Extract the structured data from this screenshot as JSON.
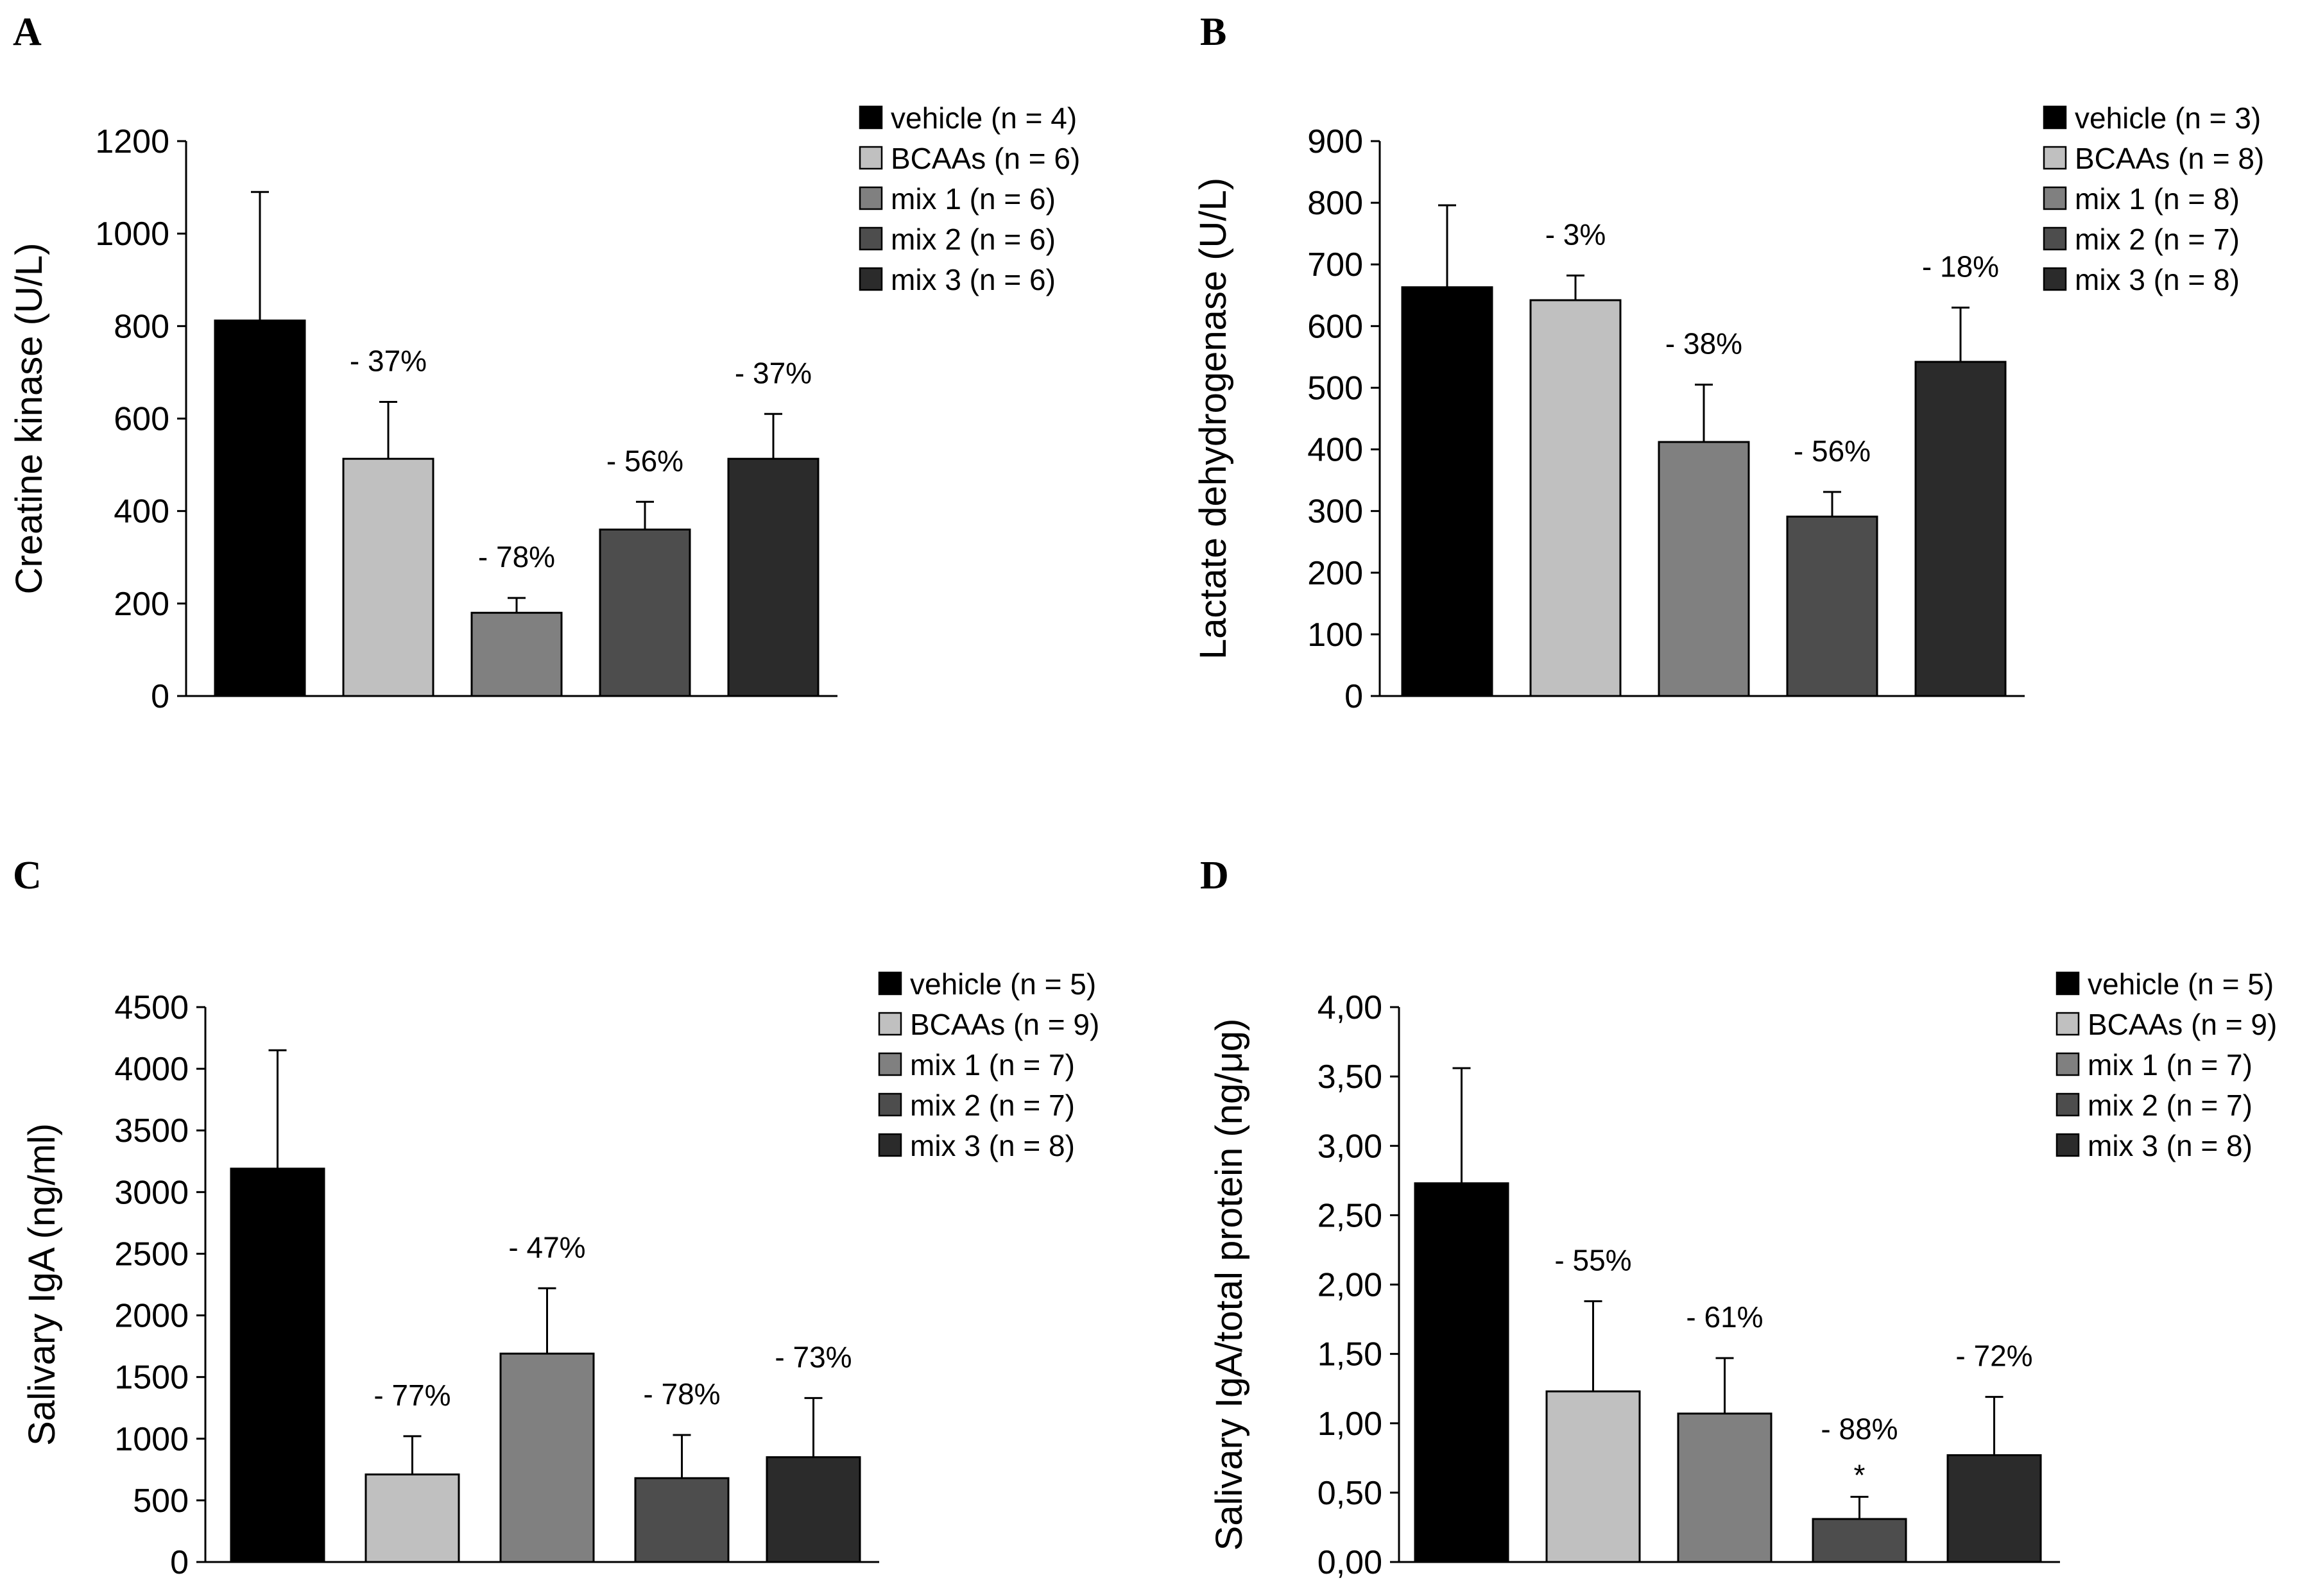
{
  "figure": {
    "colors": {
      "vehicle": "#000000",
      "bcaas": "#c0c0c0",
      "mix1": "#808080",
      "mix2": "#4d4d4d",
      "mix3": "#2b2b2b"
    }
  },
  "chart_data": [
    {
      "panel": "A",
      "type": "bar",
      "ylabel": "Creatine kinase (U/L)",
      "ylim": [
        0,
        1200
      ],
      "yticks": [
        "0",
        "200",
        "400",
        "600",
        "800",
        "1000",
        "1200"
      ],
      "series": [
        {
          "name": "vehicle (n = 4)",
          "key": "vehicle",
          "value": 812,
          "error": 278,
          "annotation": ""
        },
        {
          "name": "BCAAs (n = 6)",
          "key": "bcaas",
          "value": 513,
          "error": 123,
          "annotation": "- 37%"
        },
        {
          "name": "mix 1 (n = 6)",
          "key": "mix1",
          "value": 180,
          "error": 32,
          "annotation": "- 78%"
        },
        {
          "name": "mix 2 (n = 6)",
          "key": "mix2",
          "value": 360,
          "error": 60,
          "annotation": "- 56%"
        },
        {
          "name": "mix 3 (n = 6)",
          "key": "mix3",
          "value": 513,
          "error": 97,
          "annotation": "- 37%"
        }
      ]
    },
    {
      "panel": "B",
      "type": "bar",
      "ylabel": "Lactate dehydrogenase (U/L)",
      "ylim": [
        0,
        900
      ],
      "yticks": [
        "0",
        "100",
        "200",
        "300",
        "400",
        "500",
        "600",
        "700",
        "800",
        "900"
      ],
      "series": [
        {
          "name": "vehicle (n = 3)",
          "key": "vehicle",
          "value": 663,
          "error": 133,
          "annotation": ""
        },
        {
          "name": "BCAAs (n = 8)",
          "key": "bcaas",
          "value": 642,
          "error": 40,
          "annotation": "- 3%"
        },
        {
          "name": "mix 1 (n = 8)",
          "key": "mix1",
          "value": 412,
          "error": 93,
          "annotation": "- 38%"
        },
        {
          "name": "mix 2 (n = 7)",
          "key": "mix2",
          "value": 291,
          "error": 40,
          "annotation": "- 56%"
        },
        {
          "name": "mix 3 (n = 8)",
          "key": "mix3",
          "value": 542,
          "error": 88,
          "annotation": "- 18%"
        }
      ]
    },
    {
      "panel": "C",
      "type": "bar",
      "ylabel": "Salivary IgA (ng/ml)",
      "ylim": [
        0,
        4500
      ],
      "yticks": [
        "0",
        "500",
        "1000",
        "1500",
        "2000",
        "2500",
        "3000",
        "3500",
        "4000",
        "4500"
      ],
      "series": [
        {
          "name": "vehicle (n = 5)",
          "key": "vehicle",
          "value": 3190,
          "error": 960,
          "annotation": ""
        },
        {
          "name": "BCAAs (n = 9)",
          "key": "bcaas",
          "value": 710,
          "error": 310,
          "annotation": "- 77%"
        },
        {
          "name": "mix 1 (n = 7)",
          "key": "mix1",
          "value": 1690,
          "error": 530,
          "annotation": "- 47%"
        },
        {
          "name": "mix 2 (n = 7)",
          "key": "mix2",
          "value": 680,
          "error": 350,
          "annotation": "- 78%"
        },
        {
          "name": "mix 3 (n = 8)",
          "key": "mix3",
          "value": 850,
          "error": 480,
          "annotation": "- 73%"
        }
      ]
    },
    {
      "panel": "D",
      "type": "bar",
      "ylabel": "Salivary IgA/total protein (ng/μg)",
      "ylim": [
        0,
        4
      ],
      "yticks": [
        "0,00",
        "0,50",
        "1,00",
        "1,50",
        "2,00",
        "2,50",
        "3,00",
        "3,50",
        "4,00"
      ],
      "series": [
        {
          "name": "vehicle (n = 5)",
          "key": "vehicle",
          "value": 2.73,
          "error": 0.83,
          "annotation": ""
        },
        {
          "name": "BCAAs (n = 9)",
          "key": "bcaas",
          "value": 1.23,
          "error": 0.65,
          "annotation": "- 55%"
        },
        {
          "name": "mix 1 (n = 7)",
          "key": "mix1",
          "value": 1.07,
          "error": 0.4,
          "annotation": "- 61%"
        },
        {
          "name": "mix 2 (n = 7)",
          "key": "mix2",
          "value": 0.31,
          "error": 0.16,
          "annotation": "- 88%",
          "significance": "*"
        },
        {
          "name": "mix 3 (n = 8)",
          "key": "mix3",
          "value": 0.77,
          "error": 0.42,
          "annotation": "- 72%"
        }
      ]
    }
  ]
}
